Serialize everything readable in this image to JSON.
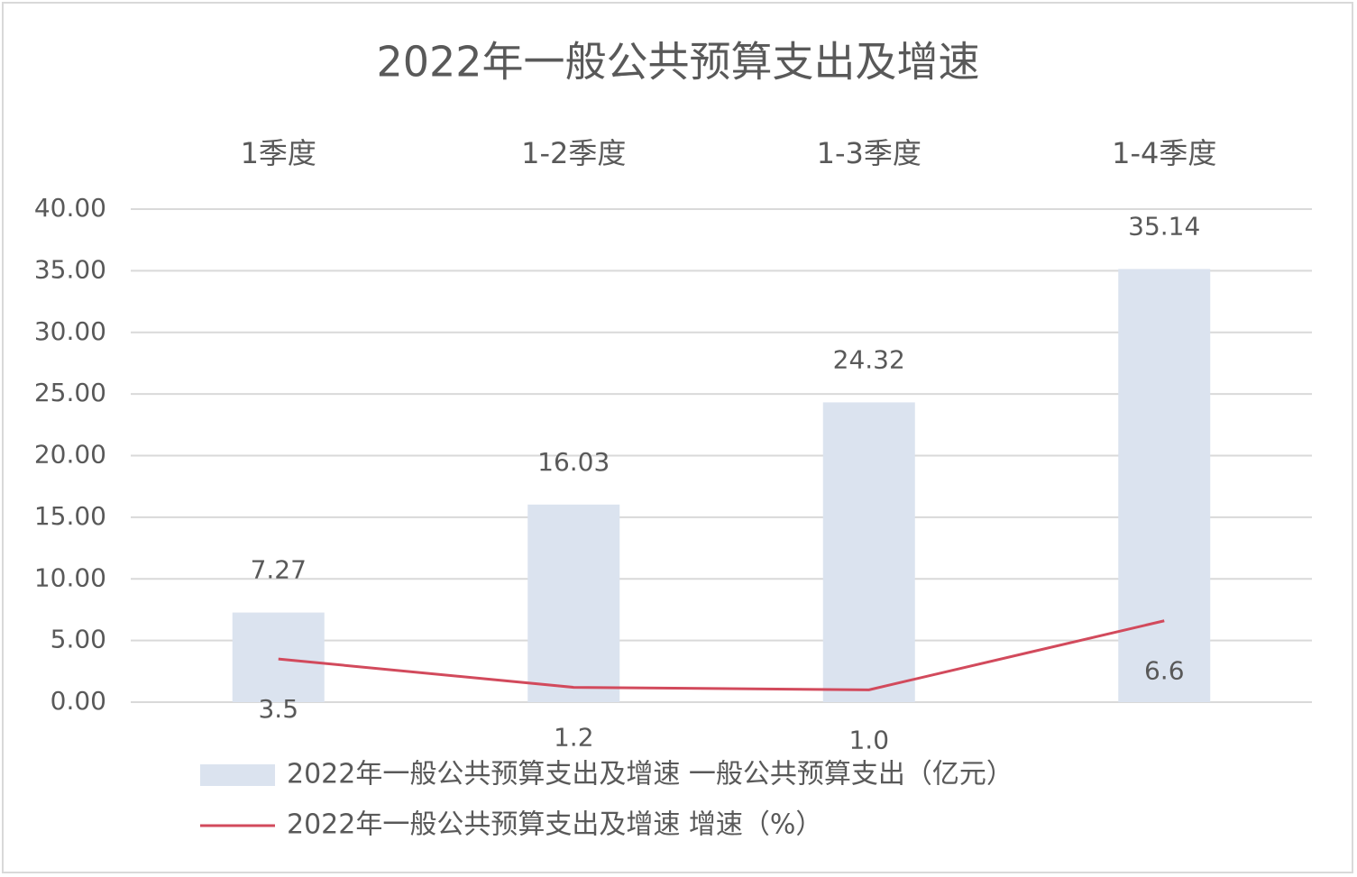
{
  "chart_data": {
    "type": "bar",
    "title": "2022年一般公共预算支出及增速",
    "categories": [
      "1季度",
      "1-2季度",
      "1-3季度",
      "1-4季度"
    ],
    "series": [
      {
        "name": "2022年一般公共预算支出及增速 一般公共预算支出（亿元）",
        "type": "bar",
        "color": "#dbe3ef",
        "values": [
          7.27,
          16.03,
          24.32,
          35.14
        ]
      },
      {
        "name": "2022年一般公共预算支出及增速 增速（%）",
        "type": "line",
        "color": "#d24a5c",
        "values": [
          3.5,
          1.2,
          1.0,
          6.6
        ],
        "value_labels": [
          "3.5",
          "1.2",
          "1.0",
          "6.6"
        ]
      }
    ],
    "ylim": [
      0,
      40
    ],
    "yticks": [
      {
        "value": 0,
        "label": "0.00"
      },
      {
        "value": 5,
        "label": "5.00"
      },
      {
        "value": 10,
        "label": "10.00"
      },
      {
        "value": 15,
        "label": "15.00"
      },
      {
        "value": 20,
        "label": "20.00"
      },
      {
        "value": 25,
        "label": "25.00"
      },
      {
        "value": 30,
        "label": "30.00"
      },
      {
        "value": 35,
        "label": "35.00"
      },
      {
        "value": 40,
        "label": "40.00"
      }
    ],
    "grid": true,
    "legend": "bottom"
  }
}
